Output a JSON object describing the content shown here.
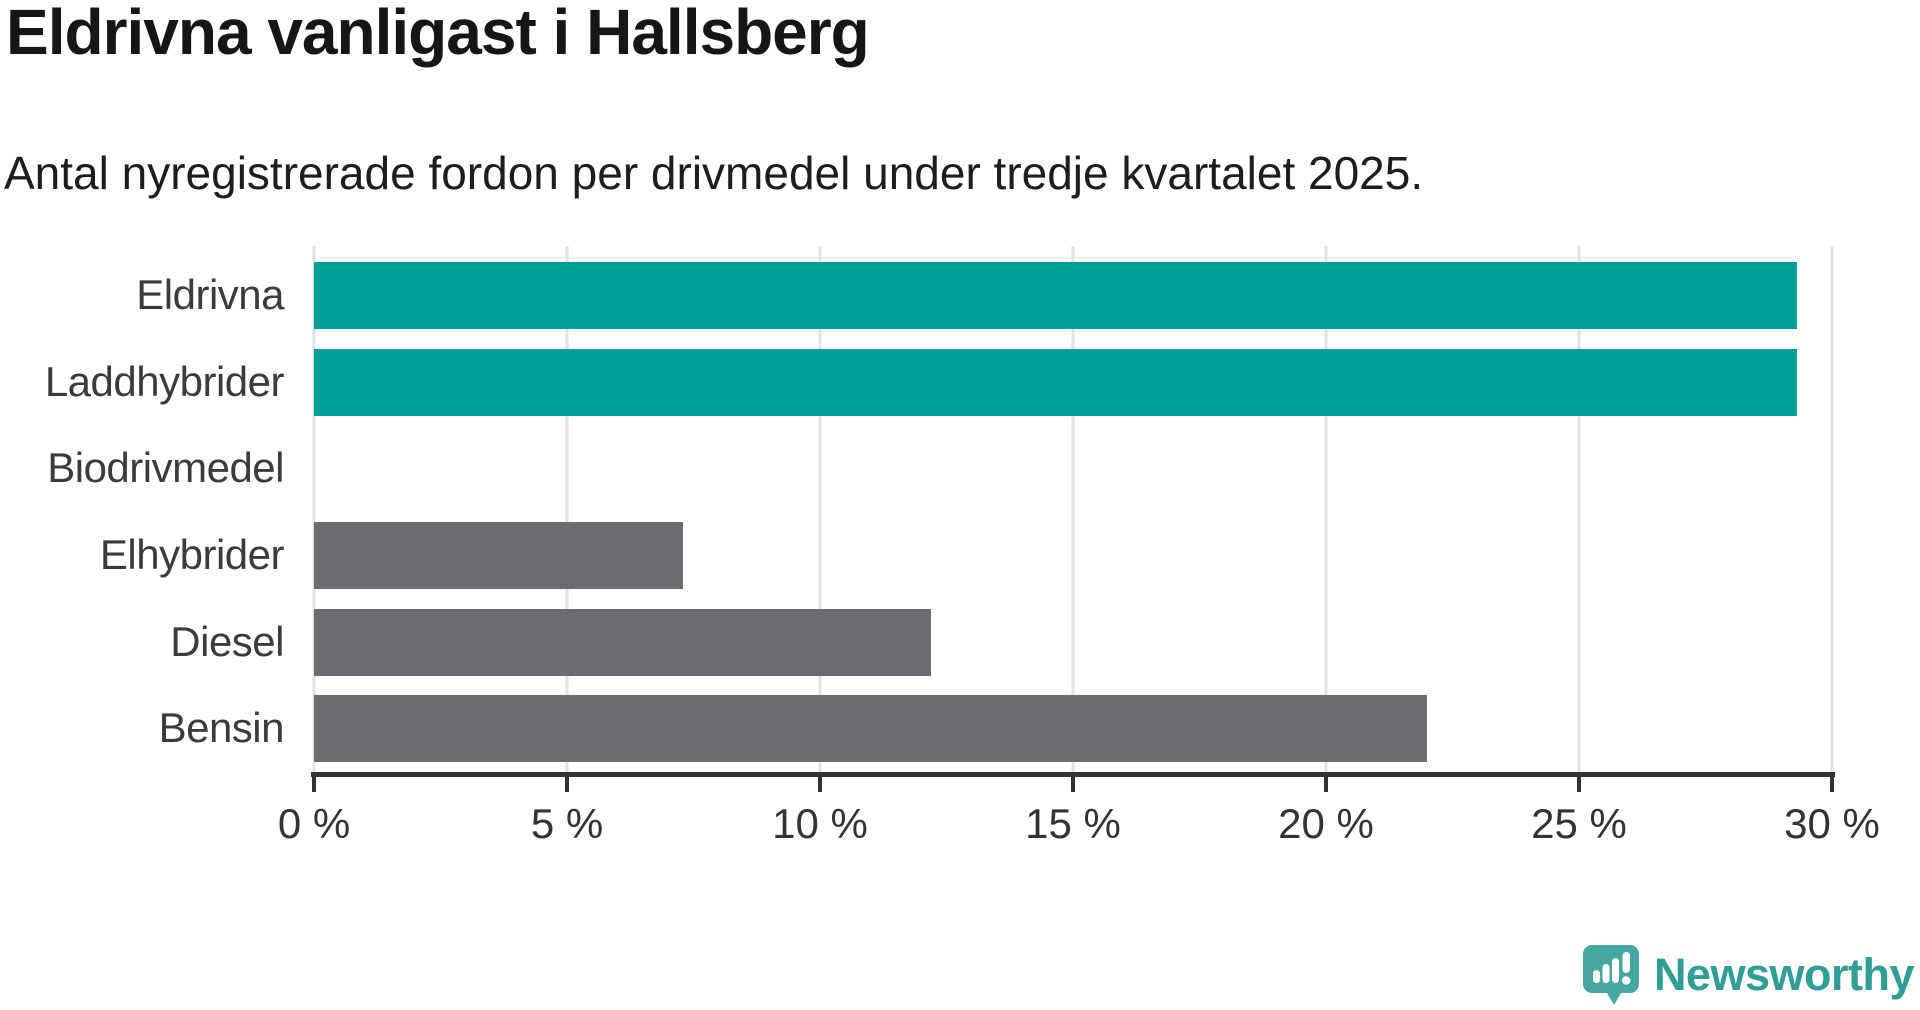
{
  "header": {
    "title": "Eldrivna vanligast i Hallsberg",
    "subtitle": "Antal nyregistrerade fordon per drivmedel under tredje kvartalet 2025."
  },
  "chart_data": {
    "type": "bar",
    "orientation": "horizontal",
    "title": "Eldrivna vanligast i Hallsberg",
    "xlabel": "",
    "ylabel": "",
    "categories": [
      "Eldrivna",
      "Laddhybrider",
      "Biodrivmedel",
      "Elhybrider",
      "Diesel",
      "Bensin"
    ],
    "values": [
      29.3,
      29.3,
      0,
      7.3,
      12.2,
      22.0
    ],
    "unit": "%",
    "xlim": [
      0,
      30
    ],
    "x_ticks": [
      0,
      5,
      10,
      15,
      20,
      25,
      30
    ],
    "x_tick_labels": [
      "0 %",
      "5 %",
      "10 %",
      "15 %",
      "20 %",
      "25 %",
      "30 %"
    ],
    "grid": "vertical",
    "highlight_color": "#009e96",
    "default_color": "#6b6b71",
    "bar_colors": [
      "#009e96",
      "#009e96",
      "#6b6b71",
      "#6b6b71",
      "#6b6b71",
      "#6b6b71"
    ],
    "legend": null
  },
  "footer": {
    "brand": "Newsworthy",
    "brand_color": "#2f9e97",
    "icon_color": "#46a7a0"
  }
}
